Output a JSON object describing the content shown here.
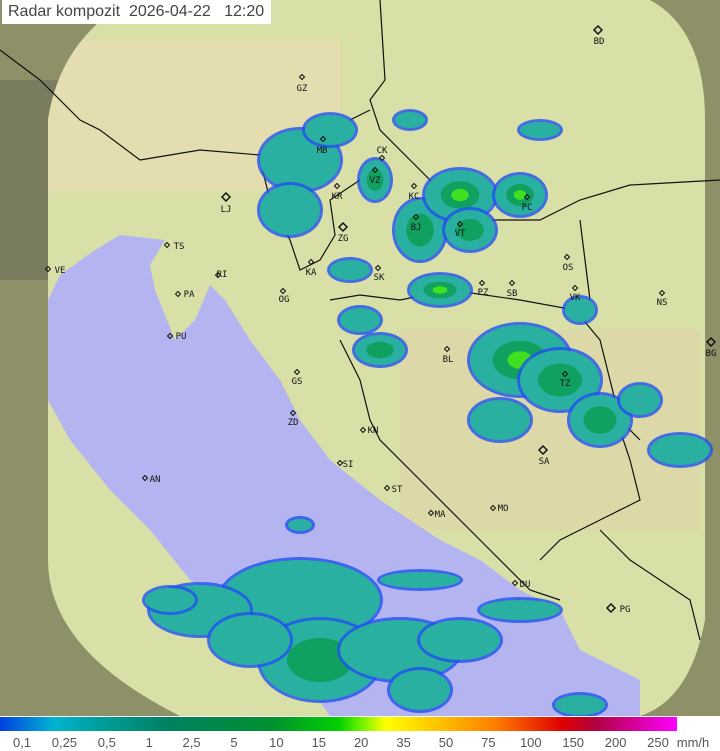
{
  "title": {
    "label": "Radar kompozit",
    "date": "2026-04-22",
    "time": "12:20"
  },
  "colors": {
    "land": "#d8e0a8",
    "sea": "#b4b4f0",
    "outside": "#8e9068",
    "echo_light": "#2ab0a0",
    "echo_mid": "#10a060",
    "echo_strong": "#40e020",
    "echo_edge": "#2050f0"
  },
  "cities": [
    "BD",
    "GZ",
    "MB",
    "CK",
    "VZ",
    "KR",
    "KC",
    "BJ",
    "PC",
    "VT",
    "LJ",
    "ZG",
    "TS",
    "KA",
    "SK",
    "OS",
    "VE",
    "RI",
    "PA",
    "OG",
    "PZ",
    "SB",
    "VK",
    "NS",
    "PU",
    "BL",
    "BG",
    "GS",
    "TZ",
    "ZD",
    "KN",
    "SI",
    "SA",
    "AN",
    "ST",
    "MA",
    "MO",
    "DU",
    "PG"
  ],
  "capitals": [
    "LJ",
    "ZG",
    "BG",
    "SA",
    "PG",
    "BD"
  ],
  "legend": {
    "values": [
      "0,1",
      "0,25",
      "0,5",
      "1",
      "2,5",
      "5",
      "10",
      "15",
      "20",
      "35",
      "50",
      "75",
      "100",
      "150",
      "200",
      "250"
    ],
    "unit": "mm/h"
  }
}
